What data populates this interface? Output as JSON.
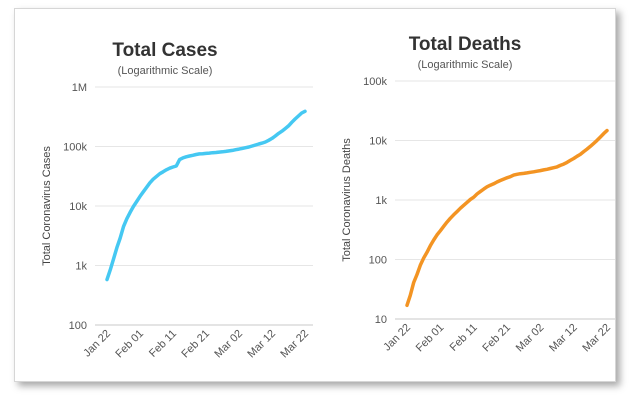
{
  "chart_data": [
    {
      "type": "line",
      "title": "Total Cases",
      "subtitle": "(Logarithmic Scale)",
      "ylabel": "Total Coronavirus Cases",
      "xlabel": "",
      "y_scale": "log",
      "ylim": [
        100,
        1000000
      ],
      "y_ticks": [
        100,
        1000,
        10000,
        100000,
        1000000
      ],
      "y_tick_labels": [
        "100",
        "1k",
        "10k",
        "100k",
        "1M"
      ],
      "x_tick_labels": [
        "Jan 22",
        "Feb 01",
        "Feb 11",
        "Feb 21",
        "Mar 02",
        "Mar 12",
        "Mar 22"
      ],
      "grid": "horizontal",
      "color": "#45c8f2",
      "series": [
        {
          "x": [
            "Jan 22",
            "Jan 23",
            "Jan 24",
            "Jan 25",
            "Jan 26",
            "Jan 27",
            "Jan 28",
            "Jan 29",
            "Jan 30",
            "Jan 31",
            "Feb 01",
            "Feb 02",
            "Feb 03",
            "Feb 04",
            "Feb 05",
            "Feb 06",
            "Feb 07",
            "Feb 08",
            "Feb 09",
            "Feb 10",
            "Feb 11",
            "Feb 12",
            "Feb 13",
            "Feb 14",
            "Feb 15",
            "Feb 16",
            "Feb 17",
            "Feb 18",
            "Feb 19",
            "Feb 20",
            "Feb 21",
            "Feb 22",
            "Feb 23",
            "Feb 24",
            "Feb 25",
            "Feb 26",
            "Feb 27",
            "Feb 28",
            "Feb 29",
            "Mar 01",
            "Mar 02",
            "Mar 03",
            "Mar 04",
            "Mar 05",
            "Mar 06",
            "Mar 07",
            "Mar 08",
            "Mar 09",
            "Mar 10",
            "Mar 11",
            "Mar 12",
            "Mar 13",
            "Mar 14",
            "Mar 15",
            "Mar 16",
            "Mar 17",
            "Mar 18",
            "Mar 19",
            "Mar 20",
            "Mar 21",
            "Mar 22"
          ],
          "values": [
            580,
            850,
            1300,
            2000,
            2900,
            4500,
            6100,
            7800,
            9800,
            11900,
            14500,
            17300,
            20600,
            24500,
            28200,
            31500,
            34900,
            37600,
            40600,
            43100,
            45200,
            47000,
            60300,
            64400,
            67100,
            69200,
            71200,
            73300,
            75100,
            75700,
            76700,
            77600,
            78600,
            79400,
            80400,
            81400,
            82800,
            84200,
            86000,
            88400,
            90300,
            92800,
            95300,
            98200,
            102000,
            106000,
            110000,
            114000,
            119000,
            127000,
            137000,
            150000,
            166000,
            181000,
            200000,
            222000,
            255000,
            290000,
            325000,
            365000,
            390000
          ]
        }
      ]
    },
    {
      "type": "line",
      "title": "Total Deaths",
      "subtitle": "(Logarithmic Scale)",
      "ylabel": "Total Coronavirus Deaths",
      "xlabel": "",
      "y_scale": "log",
      "ylim": [
        10,
        100000
      ],
      "y_ticks": [
        10,
        100,
        1000,
        10000,
        100000
      ],
      "y_tick_labels": [
        "10",
        "100",
        "1k",
        "10k",
        "100k"
      ],
      "x_tick_labels": [
        "Jan 22",
        "Feb 01",
        "Feb 11",
        "Feb 21",
        "Mar 02",
        "Mar 12",
        "Mar 22"
      ],
      "grid": "horizontal",
      "color": "#f39423",
      "series": [
        {
          "x": [
            "Jan 22",
            "Jan 23",
            "Jan 24",
            "Jan 25",
            "Jan 26",
            "Jan 27",
            "Jan 28",
            "Jan 29",
            "Jan 30",
            "Jan 31",
            "Feb 01",
            "Feb 02",
            "Feb 03",
            "Feb 04",
            "Feb 05",
            "Feb 06",
            "Feb 07",
            "Feb 08",
            "Feb 09",
            "Feb 10",
            "Feb 11",
            "Feb 12",
            "Feb 13",
            "Feb 14",
            "Feb 15",
            "Feb 16",
            "Feb 17",
            "Feb 18",
            "Feb 19",
            "Feb 20",
            "Feb 21",
            "Feb 22",
            "Feb 23",
            "Feb 24",
            "Feb 25",
            "Feb 26",
            "Feb 27",
            "Feb 28",
            "Feb 29",
            "Mar 01",
            "Mar 02",
            "Mar 03",
            "Mar 04",
            "Mar 05",
            "Mar 06",
            "Mar 07",
            "Mar 08",
            "Mar 09",
            "Mar 10",
            "Mar 11",
            "Mar 12",
            "Mar 13",
            "Mar 14",
            "Mar 15",
            "Mar 16",
            "Mar 17",
            "Mar 18",
            "Mar 19",
            "Mar 20",
            "Mar 21",
            "Mar 22"
          ],
          "values": [
            17,
            25,
            41,
            56,
            80,
            106,
            132,
            170,
            213,
            259,
            304,
            362,
            426,
            492,
            565,
            638,
            724,
            813,
            910,
            1018,
            1115,
            1261,
            1383,
            1526,
            1669,
            1775,
            1873,
            2009,
            2126,
            2247,
            2360,
            2460,
            2618,
            2699,
            2763,
            2800,
            2858,
            2923,
            2977,
            3050,
            3117,
            3202,
            3285,
            3387,
            3494,
            3599,
            3809,
            4011,
            4290,
            4627,
            4981,
            5428,
            5833,
            6520,
            7158,
            7974,
            8952,
            10030,
            11385,
            13050,
            14650
          ]
        }
      ]
    }
  ]
}
